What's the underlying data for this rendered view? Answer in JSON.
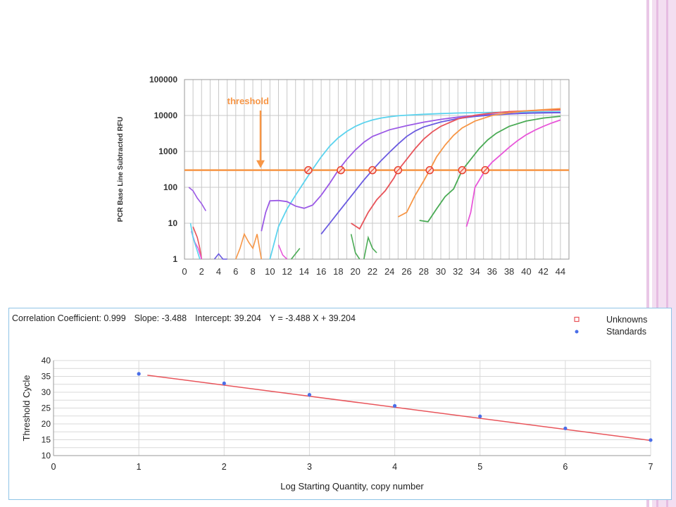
{
  "amplification_chart": {
    "type": "line",
    "ylabel": "PCR Base Line Subtracted RFU",
    "ylim": [
      1,
      100000
    ],
    "yscale": "log",
    "yticks": [
      "100000",
      "10000",
      "1000",
      "100",
      "10",
      "1"
    ],
    "xlim": [
      0,
      45
    ],
    "xticks": [
      "0",
      "2",
      "4",
      "6",
      "8",
      "10",
      "12",
      "14",
      "16",
      "18",
      "20",
      "22",
      "24",
      "26",
      "28",
      "30",
      "32",
      "34",
      "36",
      "38",
      "40",
      "42",
      "44"
    ],
    "grid": true,
    "threshold": {
      "label": "threshold",
      "y": 300,
      "color": "#f79646"
    },
    "crossings": [
      14.5,
      18.3,
      22,
      25,
      28.7,
      32.5,
      35.2
    ],
    "series": [
      {
        "color": "#5bd3ee",
        "x": [
          10,
          11,
          12,
          13,
          14,
          15,
          16,
          17,
          18,
          19,
          20,
          21,
          22,
          23,
          24,
          25,
          26,
          28,
          30,
          32,
          34,
          36,
          38,
          40,
          42,
          44
        ],
        "y": [
          1,
          8,
          25,
          60,
          140,
          320,
          700,
          1400,
          2400,
          3600,
          5000,
          6300,
          7500,
          8500,
          9200,
          9800,
          10200,
          10800,
          11300,
          11700,
          12000,
          12200,
          12400,
          12500,
          12600,
          12700
        ]
      },
      {
        "color": "#9b59e6",
        "x": [
          9,
          9.5,
          10,
          11,
          12,
          13,
          14,
          15,
          16,
          17,
          18,
          19,
          20,
          21,
          22,
          24,
          26,
          28,
          30,
          32,
          34,
          36,
          38,
          40,
          42,
          44
        ],
        "y": [
          6,
          20,
          42,
          43,
          40,
          30,
          26,
          32,
          60,
          130,
          300,
          600,
          1100,
          1800,
          2600,
          4000,
          5200,
          6500,
          7800,
          9000,
          10000,
          10700,
          11200,
          11600,
          11900,
          12100
        ]
      },
      {
        "color": "#6a5ae0",
        "x": [
          16,
          17,
          18,
          19,
          20,
          21,
          22,
          23,
          24,
          25,
          26,
          27,
          28,
          30,
          32,
          34,
          36,
          38,
          40,
          42,
          44
        ],
        "y": [
          5,
          10,
          20,
          40,
          80,
          160,
          300,
          550,
          950,
          1600,
          2600,
          3700,
          4800,
          6600,
          8200,
          9400,
          10300,
          11000,
          11500,
          11800,
          12000
        ]
      },
      {
        "color": "#e8545a",
        "x": [
          19.5,
          20.5,
          21.5,
          22.5,
          23.5,
          24.5,
          25,
          26,
          27,
          28,
          29,
          30,
          32,
          34,
          36,
          38,
          40,
          42,
          44
        ],
        "y": [
          10,
          7,
          20,
          45,
          80,
          180,
          300,
          600,
          1200,
          2200,
          3500,
          5000,
          8000,
          10200,
          11700,
          12800,
          13500,
          14000,
          14300
        ]
      },
      {
        "color": "#f79646",
        "x": [
          25,
          26,
          27,
          28,
          28.7,
          29.5,
          30.5,
          31.5,
          32.5,
          34,
          36,
          38,
          40,
          42,
          44
        ],
        "y": [
          15,
          20,
          60,
          150,
          300,
          700,
          1500,
          2800,
          4500,
          7000,
          10000,
          12000,
          13500,
          14500,
          15500
        ]
      },
      {
        "color": "#4aab55",
        "x": [
          27.5,
          28.5,
          29.5,
          30.5,
          31.5,
          32.5,
          33.5,
          34.5,
          35.5,
          36.5,
          38,
          40,
          42,
          44
        ],
        "y": [
          12,
          11,
          25,
          55,
          90,
          300,
          600,
          1200,
          2100,
          3200,
          5000,
          7000,
          8500,
          9500
        ]
      },
      {
        "color": "#e857d9",
        "x": [
          33,
          33.5,
          34,
          35.2,
          36,
          37,
          38,
          39,
          40,
          41,
          42,
          43,
          44
        ],
        "y": [
          8,
          20,
          100,
          300,
          500,
          800,
          1300,
          2000,
          2900,
          3900,
          5000,
          6200,
          7500
        ]
      }
    ],
    "noise": [
      {
        "color": "#9b59e6",
        "x": [
          0.5,
          1,
          1.5,
          2,
          2.5
        ],
        "y": [
          100,
          80,
          50,
          35,
          22
        ]
      },
      {
        "color": "#e8545a",
        "x": [
          1,
          1.2,
          1.5,
          1.8,
          2
        ],
        "y": [
          8,
          6,
          4,
          2,
          1
        ]
      },
      {
        "color": "#e857d9",
        "x": [
          0.8,
          1.2,
          1.6,
          2
        ],
        "y": [
          6,
          3,
          2,
          1
        ]
      },
      {
        "color": "#5bd3ee",
        "x": [
          0.7,
          1,
          1.4,
          1.8
        ],
        "y": [
          10,
          4,
          2,
          1
        ]
      },
      {
        "color": "#6a5ae0",
        "x": [
          3.5,
          4,
          4.5,
          5
        ],
        "y": [
          1,
          1.4,
          1,
          1
        ]
      },
      {
        "color": "#f79646",
        "x": [
          6,
          6.5,
          7,
          7.5,
          8,
          8.5
        ],
        "y": [
          1,
          2,
          5,
          3,
          2,
          5
        ]
      },
      {
        "color": "#f79646",
        "x": [
          8.5,
          9
        ],
        "y": [
          5,
          1
        ]
      },
      {
        "color": "#e857d9",
        "x": [
          11,
          11.5,
          12
        ],
        "y": [
          2.5,
          1.3,
          1
        ]
      },
      {
        "color": "#4aab55",
        "x": [
          12.5,
          13.5
        ],
        "y": [
          1,
          2
        ]
      },
      {
        "color": "#4aab55",
        "x": [
          19.5,
          20,
          20.5
        ],
        "y": [
          5,
          1.5,
          1
        ]
      },
      {
        "color": "#4aab55",
        "x": [
          21,
          21.5,
          22,
          22.5
        ],
        "y": [
          1,
          4,
          2,
          1.5
        ]
      }
    ]
  },
  "standard_curve": {
    "type": "scatter",
    "summary": {
      "correlation": "Correlation Coefficient: 0.999",
      "slope": "Slope: -3.488",
      "intercept": "Intercept: 39.204",
      "equation": "Y = -3.488 X + 39.204"
    },
    "legend": [
      {
        "label": "Unknowns",
        "color": "#e8545a",
        "marker": "square"
      },
      {
        "label": "Standards",
        "color": "#4a6ee8",
        "marker": "dot"
      }
    ],
    "xlabel": "Log Starting Quantity, copy number",
    "ylabel": "Threshold Cycle",
    "xlim": [
      0,
      7
    ],
    "ylim": [
      10,
      40
    ],
    "xticks": [
      "0",
      "1",
      "2",
      "3",
      "4",
      "5",
      "6",
      "7"
    ],
    "yticks": [
      "40",
      "35",
      "30",
      "25",
      "20",
      "15",
      "10"
    ],
    "grid": true,
    "fit": {
      "slope": -3.488,
      "intercept": 39.204,
      "x_range": [
        1.1,
        7
      ],
      "color": "#e8545a"
    },
    "standards": {
      "x": [
        1,
        2,
        3,
        4,
        5,
        6,
        7
      ],
      "y": [
        35.8,
        32.8,
        29.2,
        25.7,
        22.4,
        18.6,
        14.9
      ]
    }
  }
}
